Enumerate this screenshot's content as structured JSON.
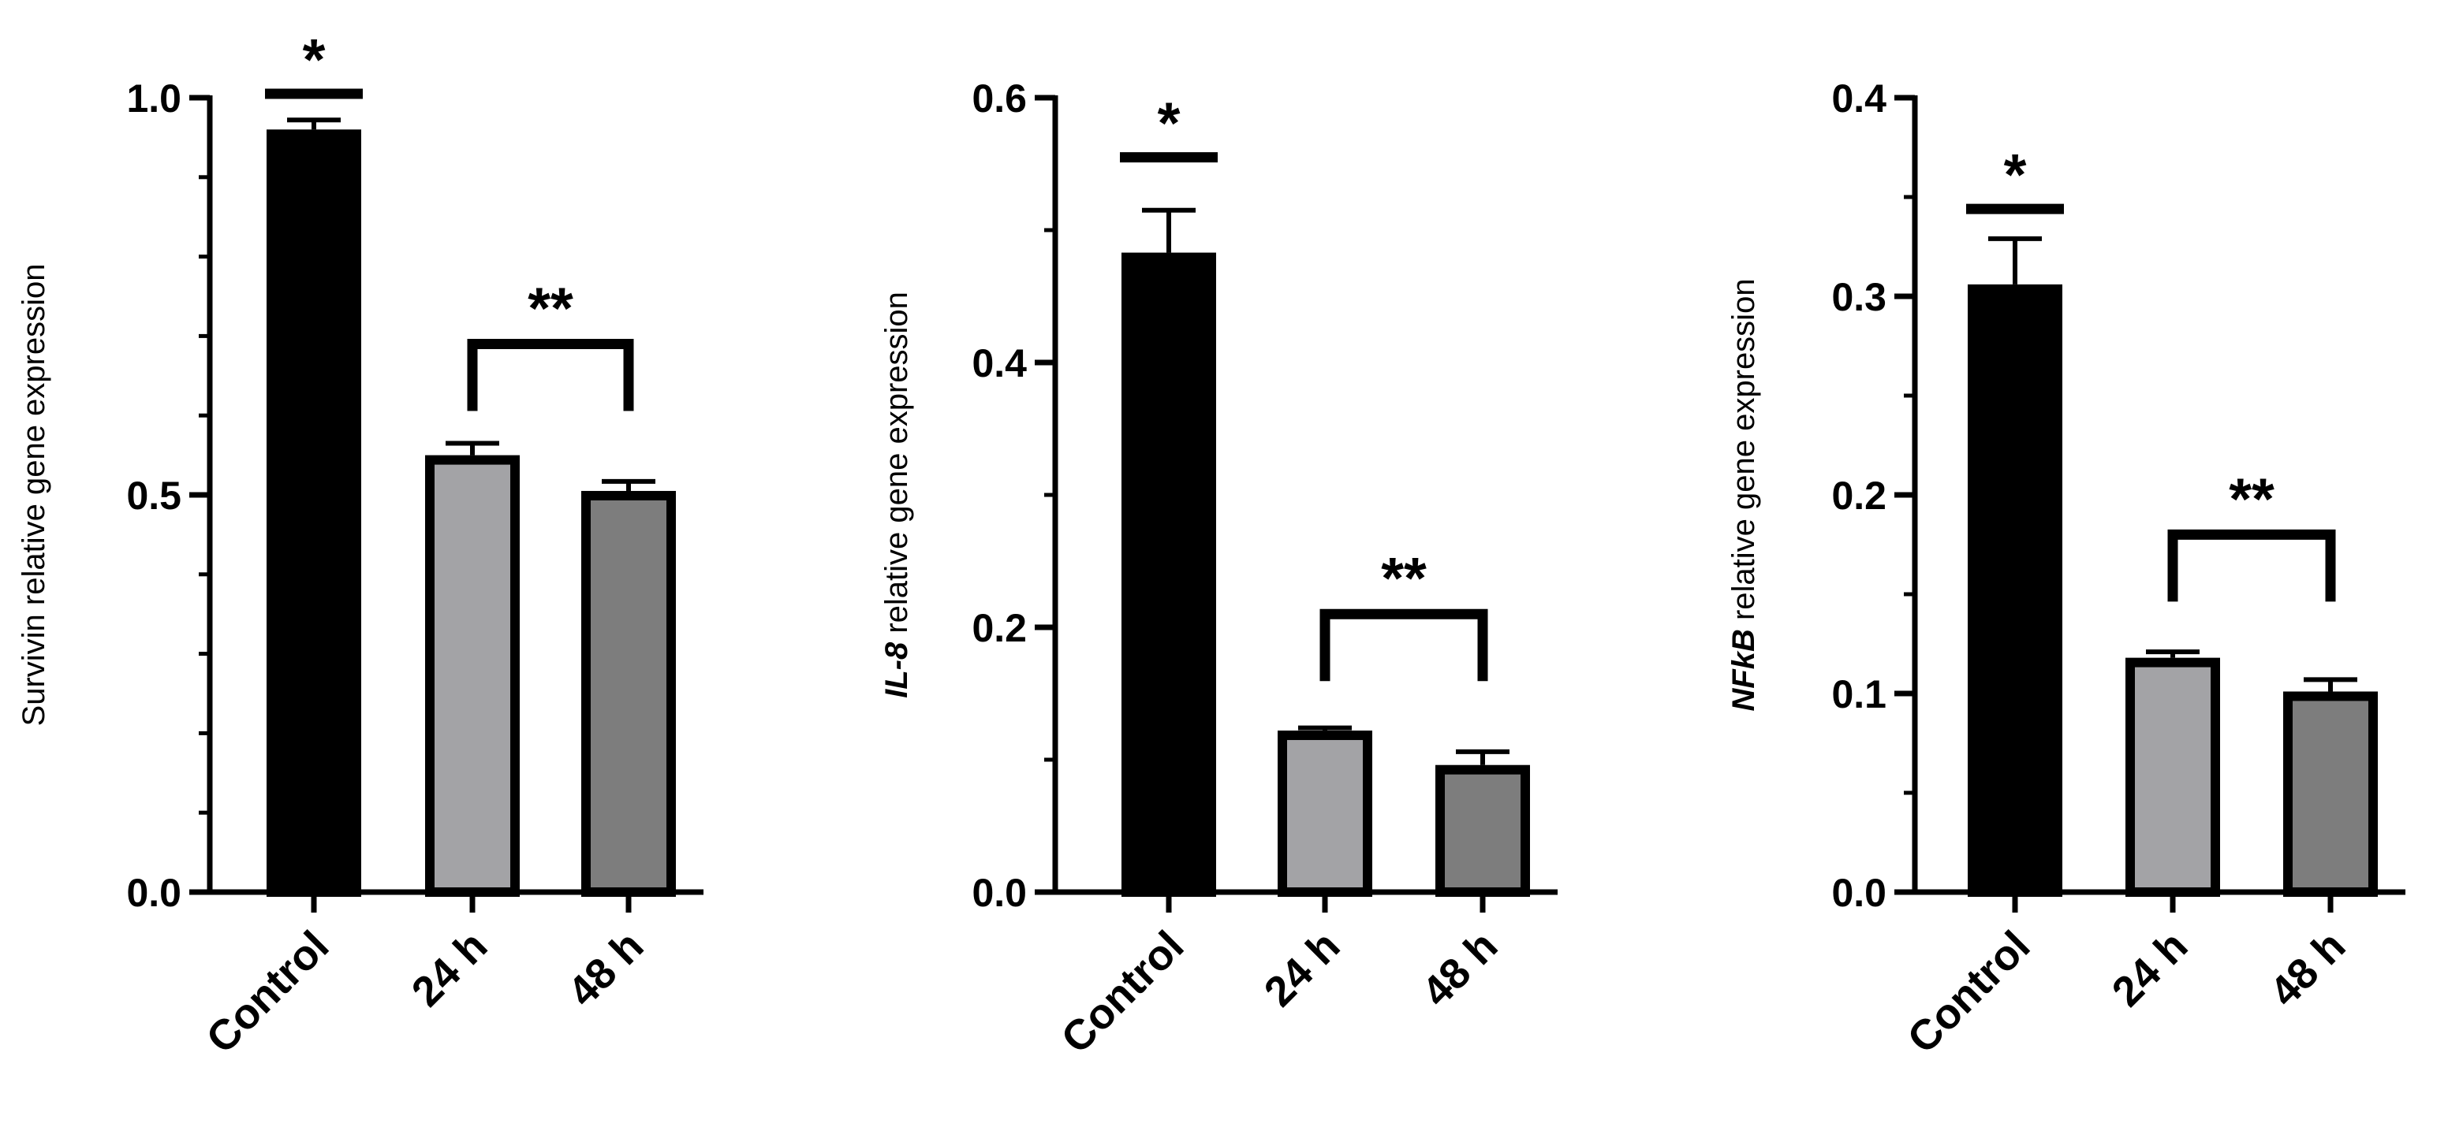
{
  "chart_data": [
    {
      "type": "bar",
      "categories": [
        "Control",
        "24 h",
        "48 h"
      ],
      "values": [
        0.96,
        0.55,
        0.505
      ],
      "errors": [
        0.012,
        0.015,
        0.012
      ],
      "ylabel_italic": "",
      "ylabel_rest": "Survivin relative gene expression",
      "ylim": [
        0,
        1.0
      ],
      "yticks": [
        0.0,
        0.5,
        1.0
      ],
      "ytick_labels": [
        "0.0",
        "0.5",
        "1.0"
      ],
      "minor_ticks_per_interval": 5,
      "bar_colors": [
        "#000000",
        "#a3a3a6",
        "#7d7d7d"
      ],
      "annotations": [
        {
          "type": "line",
          "category": 0,
          "y": 1.005,
          "text": "*"
        },
        {
          "type": "bracket",
          "from": 1,
          "to": 2,
          "y": 0.69,
          "text": "**"
        }
      ]
    },
    {
      "type": "bar",
      "categories": [
        "Control",
        "24 h",
        "48 h"
      ],
      "values": [
        0.483,
        0.122,
        0.096
      ],
      "errors": [
        0.032,
        0.002,
        0.01
      ],
      "ylabel_italic": "IL-8",
      "ylabel_rest": " relative gene expression",
      "ylim": [
        0,
        0.6
      ],
      "yticks": [
        0.0,
        0.2,
        0.4,
        0.6
      ],
      "ytick_labels": [
        "0.0",
        "0.2",
        "0.4",
        "0.6"
      ],
      "minor_ticks_per_interval": 2,
      "bar_colors": [
        "#000000",
        "#a3a3a6",
        "#7d7d7d"
      ],
      "annotations": [
        {
          "type": "line",
          "category": 0,
          "y": 0.555,
          "text": "*"
        },
        {
          "type": "bracket",
          "from": 1,
          "to": 2,
          "y": 0.21,
          "text": "**"
        }
      ]
    },
    {
      "type": "bar",
      "categories": [
        "Control",
        "24 h",
        "48 h"
      ],
      "values": [
        0.306,
        0.118,
        0.101
      ],
      "errors": [
        0.023,
        0.003,
        0.006
      ],
      "ylabel_italic": "NFkB",
      "ylabel_rest": " relative gene expression",
      "ylim": [
        0,
        0.4
      ],
      "yticks": [
        0.0,
        0.1,
        0.2,
        0.3,
        0.4
      ],
      "ytick_labels": [
        "0.0",
        "0.1",
        "0.2",
        "0.3",
        "0.4"
      ],
      "minor_ticks_per_interval": 2,
      "bar_colors": [
        "#000000",
        "#a3a3a6",
        "#7d7d7d"
      ],
      "annotations": [
        {
          "type": "line",
          "category": 0,
          "y": 0.344,
          "text": "*"
        },
        {
          "type": "bracket",
          "from": 1,
          "to": 2,
          "y": 0.18,
          "text": "**"
        }
      ]
    }
  ]
}
